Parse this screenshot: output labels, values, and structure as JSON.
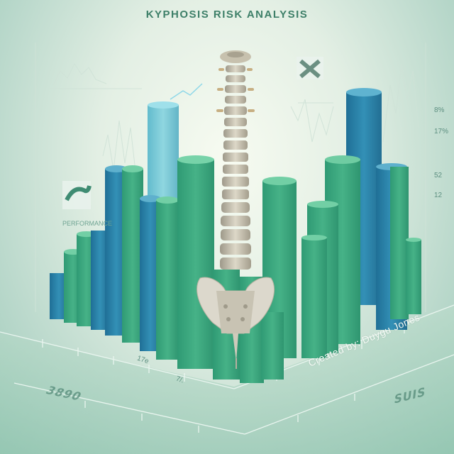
{
  "title": "KYPHOSIS RISK ANALYSIS",
  "credit": "Created by: Duygu Jones",
  "right_labels": [
    "8%",
    "17%",
    "52",
    "12"
  ],
  "axis_labels": [
    "17e",
    "7/."
  ],
  "hud_caption": "PERFORMANCE",
  "markers": [
    "3890",
    "SUIS"
  ],
  "icons": [
    "close-x-icon",
    "wave-icon"
  ],
  "colors": {
    "teal_green": "#3fa783",
    "teal_blue": "#2f87ad",
    "floor": "#a9d2bf",
    "spine": "#c9c2ad"
  }
}
